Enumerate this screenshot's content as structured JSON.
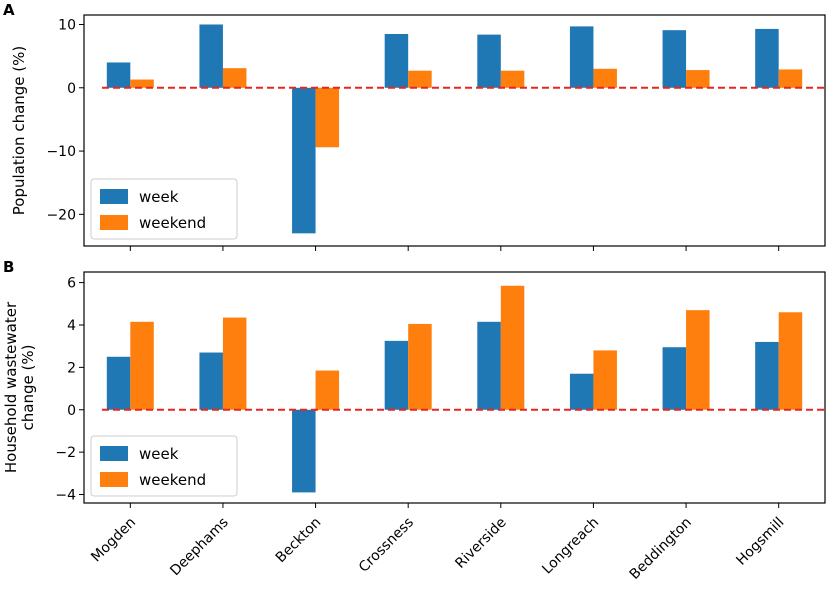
{
  "colors": {
    "week": "#1f77b4",
    "weekend": "#ff7f0e",
    "zero_line": "#e8251f",
    "frame": "#000000",
    "legend_border": "#cccccc"
  },
  "categories": [
    "Mogden",
    "Deephams",
    "Beckton",
    "Crossness",
    "Riverside",
    "Longreach",
    "Beddington",
    "Hogsmill"
  ],
  "chart_data": [
    {
      "type": "bar",
      "panel_label": "A",
      "title": "",
      "xlabel": "",
      "ylabel": "Population change (%)",
      "ylim": [
        -25,
        11.5
      ],
      "yticks": [
        10,
        0,
        -10,
        -20
      ],
      "ytick_labels": [
        "10",
        "0",
        "−10",
        "−20"
      ],
      "legend_position": "lower-left",
      "series": [
        {
          "name": "week",
          "values": [
            4.0,
            10.0,
            -23.0,
            8.5,
            8.4,
            9.7,
            9.1,
            9.3
          ]
        },
        {
          "name": "weekend",
          "values": [
            1.3,
            3.1,
            -9.4,
            2.7,
            2.7,
            3.0,
            2.8,
            2.9
          ]
        }
      ]
    },
    {
      "type": "bar",
      "panel_label": "B",
      "title": "",
      "xlabel": "",
      "ylabel": "Household wastewater change (%)",
      "ylabel_lines": [
        "Household wastewater",
        "change (%)"
      ],
      "ylim": [
        -4.4,
        6.5
      ],
      "yticks": [
        6,
        4,
        2,
        0,
        -2,
        -4
      ],
      "ytick_labels": [
        "6",
        "4",
        "2",
        "0",
        "−2",
        "−4"
      ],
      "legend_position": "lower-left",
      "series": [
        {
          "name": "week",
          "values": [
            2.5,
            2.7,
            -3.9,
            3.25,
            4.15,
            1.7,
            2.95,
            3.2
          ]
        },
        {
          "name": "weekend",
          "values": [
            4.15,
            4.35,
            1.85,
            4.05,
            5.85,
            2.8,
            4.7,
            4.6
          ]
        }
      ]
    }
  ]
}
